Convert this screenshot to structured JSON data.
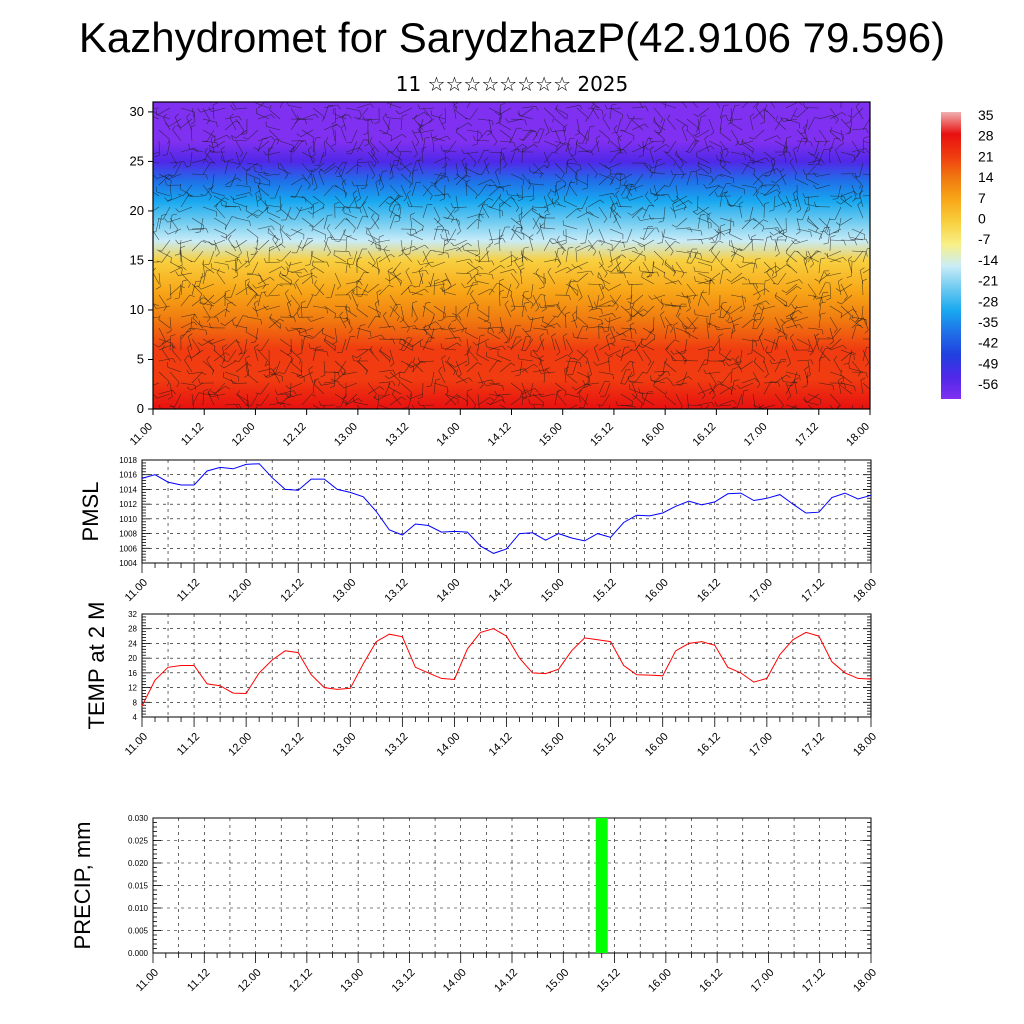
{
  "header": {
    "title": "Kazhydromet for SarydzhazP(42.9106 79.596)",
    "subtitle": "11 ☆☆☆☆☆☆☆☆ 2025"
  },
  "time_ticks": [
    "11.00",
    "11.12",
    "12.00",
    "12.12",
    "13.00",
    "13.12",
    "14.00",
    "14.12",
    "15.00",
    "15.12",
    "16.00",
    "16.12",
    "17.00",
    "17.12",
    "18.00"
  ],
  "colors": {
    "pmsl_line": "#0000ff",
    "temp_line": "#ff0000",
    "precip_bar": "#00ff00"
  },
  "chart_data": [
    {
      "type": "heatmap",
      "name": "vertical-section",
      "x_ticks": [
        "11.00",
        "11.12",
        "12.00",
        "12.12",
        "13.00",
        "13.12",
        "14.00",
        "14.12",
        "15.00",
        "15.12",
        "16.00",
        "16.12",
        "17.00",
        "17.12",
        "18.00"
      ],
      "y_ticks": [
        0,
        5,
        10,
        15,
        20,
        25,
        30
      ],
      "ylim": [
        0,
        31
      ],
      "colorbar_labels": [
        "35",
        "28",
        "21",
        "14",
        "7",
        "0",
        "-7",
        "-14",
        "-21",
        "-28",
        "-35",
        "-42",
        "-49",
        "-56"
      ],
      "colorbar_stops": [
        "#f0b0b0",
        "#e81010",
        "#f03c10",
        "#f07a10",
        "#f8a818",
        "#f8d040",
        "#f8f088",
        "#c8ecf8",
        "#6ccaf0",
        "#18a8f0",
        "#2070e8",
        "#2040e0",
        "#5028e8",
        "#8030f0"
      ],
      "temperature_profile": {
        "heights": [
          0,
          3,
          6,
          9,
          12,
          15,
          17,
          19,
          21,
          23,
          25,
          27,
          30
        ],
        "values": [
          28,
          24,
          18,
          12,
          6,
          -2,
          -12,
          -22,
          -30,
          -38,
          -48,
          -54,
          -58
        ]
      },
      "wind_barbs": true
    },
    {
      "type": "line",
      "name": "PMSL",
      "ylabel": "PMSL",
      "ylim": [
        1004,
        1018
      ],
      "y_ticks": [
        1004,
        1006,
        1008,
        1010,
        1012,
        1014,
        1016,
        1018
      ],
      "x_ticks": [
        "11.00",
        "11.12",
        "12.00",
        "12.12",
        "13.00",
        "13.12",
        "14.00",
        "14.12",
        "15.00",
        "15.12",
        "16.00",
        "16.12",
        "17.00",
        "17.12",
        "18.00"
      ],
      "x_step_hours": 3,
      "series": [
        {
          "values": [
            1015.5,
            1016.0,
            1015.0,
            1014.6,
            1014.6,
            1016.5,
            1017.0,
            1016.8,
            1017.4,
            1017.5,
            1015.6,
            1014.0,
            1013.9,
            1015.4,
            1015.4,
            1014.0,
            1013.6,
            1013.0,
            1011.0,
            1008.5,
            1007.8,
            1009.3,
            1009.1,
            1008.2,
            1008.3,
            1008.2,
            1006.3,
            1005.3,
            1005.9,
            1008.0,
            1008.1,
            1007.1,
            1008.0,
            1007.4,
            1007.0,
            1008.0,
            1007.5,
            1009.5,
            1010.5,
            1010.4,
            1010.8,
            1011.7,
            1012.4,
            1011.9,
            1012.3,
            1013.4,
            1013.5,
            1012.5,
            1012.8,
            1013.3,
            1012.0,
            1010.8,
            1010.9,
            1012.9,
            1013.5,
            1012.7,
            1013.2
          ]
        }
      ]
    },
    {
      "type": "line",
      "name": "TEMP at 2 M",
      "ylabel": "TEMP at 2 M",
      "ylim": [
        4,
        32
      ],
      "y_ticks": [
        4,
        8,
        12,
        16,
        20,
        24,
        28,
        32
      ],
      "x_ticks": [
        "11.00",
        "11.12",
        "12.00",
        "12.12",
        "13.00",
        "13.12",
        "14.00",
        "14.12",
        "15.00",
        "15.12",
        "16.00",
        "16.12",
        "17.00",
        "17.12",
        "18.00"
      ],
      "x_step_hours": 3,
      "series": [
        {
          "values": [
            7.0,
            14.0,
            17.5,
            18.0,
            18.0,
            13.0,
            12.5,
            10.5,
            10.4,
            16.0,
            19.5,
            22.0,
            21.5,
            15.5,
            12.0,
            11.5,
            11.8,
            18.5,
            24.5,
            26.5,
            25.8,
            17.5,
            16.0,
            14.5,
            14.2,
            22.5,
            27.0,
            28.0,
            26.0,
            20.0,
            16.0,
            15.8,
            17.0,
            22.0,
            25.5,
            25.0,
            24.5,
            18.0,
            15.5,
            15.4,
            15.2,
            22.0,
            24.0,
            24.5,
            23.5,
            17.5,
            16.0,
            13.5,
            14.5,
            21.0,
            25.0,
            27.0,
            26.0,
            19.0,
            16.0,
            14.5,
            14.3
          ]
        }
      ]
    },
    {
      "type": "bar",
      "name": "PRECIP, mm",
      "ylabel": "PRECIP, mm",
      "ylim": [
        0,
        0.03
      ],
      "y_ticks": [
        "0.000",
        "0.005",
        "0.010",
        "0.015",
        "0.020",
        "0.025",
        "0.030"
      ],
      "x_ticks": [
        "11.00",
        "11.12",
        "12.00",
        "12.12",
        "13.00",
        "13.12",
        "14.00",
        "14.12",
        "15.00",
        "15.12",
        "16.00",
        "16.12",
        "17.00",
        "17.12",
        "18.00"
      ],
      "bars": [
        {
          "x_hours": 105,
          "value": 0.03
        }
      ]
    }
  ]
}
